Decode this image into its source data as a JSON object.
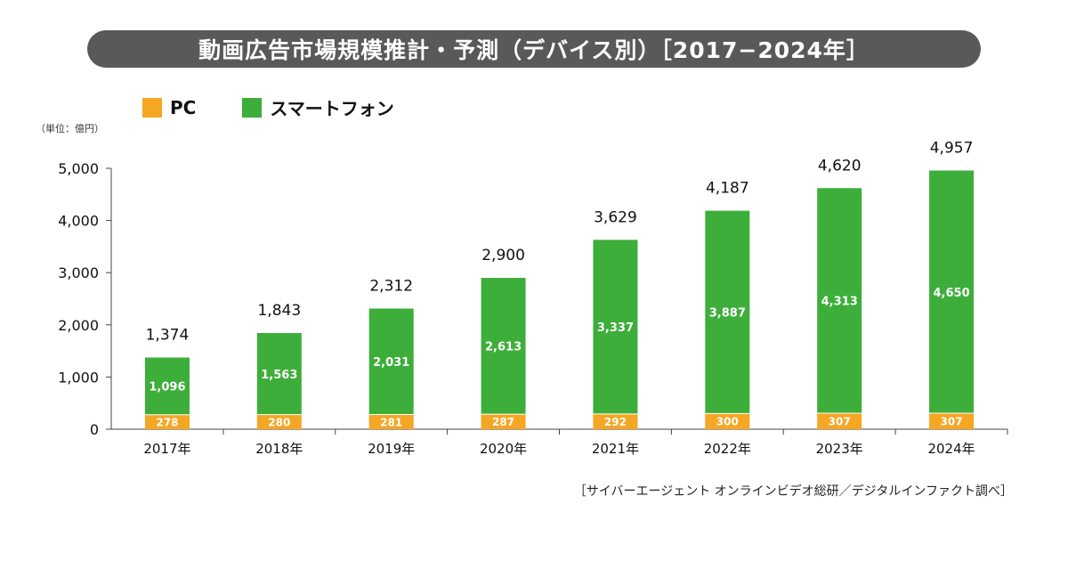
{
  "title": "動画広告市場規模推計・予測（デバイス別）［2017−2024年］",
  "unit_label": "（単位：億円）",
  "source": "［サイバーエージェント オンラインビデオ総研／デジタルインファクト調べ］",
  "colors": {
    "pc": "#F5A623",
    "smartphone": "#3DAE3A",
    "title_bar": "#595959"
  },
  "chart_data": {
    "type": "bar",
    "stacked": true,
    "categories": [
      "2017年",
      "2018年",
      "2019年",
      "2020年",
      "2021年",
      "2022年",
      "2023年",
      "2024年"
    ],
    "series": [
      {
        "name": "PC",
        "values": [
          278,
          280,
          281,
          287,
          292,
          300,
          307,
          307
        ]
      },
      {
        "name": "スマートフォン",
        "values": [
          1096,
          1563,
          2031,
          2613,
          3337,
          3887,
          4313,
          4650
        ]
      }
    ],
    "totals": [
      1374,
      1843,
      2312,
      2900,
      3629,
      4187,
      4620,
      4957
    ],
    "ylim": [
      0,
      5000
    ],
    "yticks": [
      0,
      1000,
      2000,
      3000,
      4000,
      5000
    ],
    "ytick_labels": [
      "0",
      "1,000",
      "2,000",
      "3,000",
      "4,000",
      "5,000"
    ],
    "legend_position": "top-left",
    "grid": false
  }
}
